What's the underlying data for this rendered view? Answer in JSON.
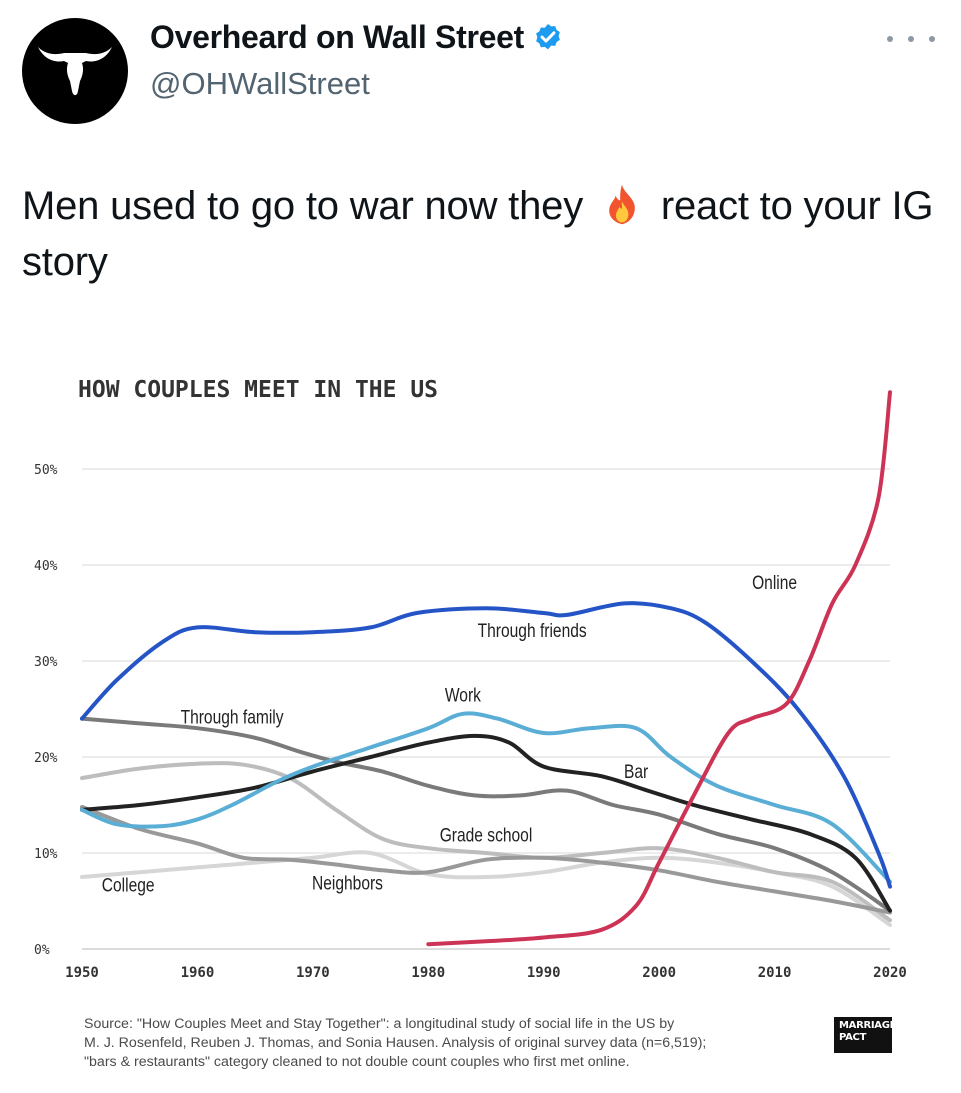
{
  "tweet": {
    "display_name": "Overheard on Wall Street",
    "handle": "@OHWallStreet",
    "verified_icon": "verified-badge-icon",
    "more_icon": "more-options-icon",
    "text_before": "Men used to go to war now they",
    "emoji": "fire-icon",
    "text_after": "react to your IG story"
  },
  "chart_data": {
    "type": "line",
    "title": "HOW COUPLES MEET IN THE US",
    "xlabel": "",
    "ylabel": "",
    "xlim": [
      1950,
      2020
    ],
    "ylim": [
      0,
      50
    ],
    "x_ticks": [
      "1950",
      "1960",
      "1970",
      "1980",
      "1990",
      "2000",
      "2010",
      "2020"
    ],
    "y_ticks": [
      "50%",
      "40%",
      "30%",
      "20%",
      "10%",
      "0%"
    ],
    "grid": true,
    "legend": "inline labels",
    "series": [
      {
        "name": "Through friends",
        "color": "#2554c7",
        "label_at": [
          1989,
          32.5
        ],
        "points": [
          [
            1950,
            24
          ],
          [
            1953,
            28
          ],
          [
            1957,
            32
          ],
          [
            1960,
            33.5
          ],
          [
            1965,
            33
          ],
          [
            1970,
            33
          ],
          [
            1975,
            33.5
          ],
          [
            1979,
            35
          ],
          [
            1985,
            35.5
          ],
          [
            1990,
            35
          ],
          [
            1992,
            34.8
          ],
          [
            1997,
            36
          ],
          [
            2001,
            35.5
          ],
          [
            2004,
            34
          ],
          [
            2008,
            30
          ],
          [
            2012,
            25
          ],
          [
            2016,
            18
          ],
          [
            2019,
            10
          ],
          [
            2020,
            6.5
          ]
        ]
      },
      {
        "name": "Work",
        "color": "#5aaed6",
        "label_at": [
          1983,
          25.8
        ],
        "points": [
          [
            1950,
            14.5
          ],
          [
            1953,
            13
          ],
          [
            1957,
            12.8
          ],
          [
            1960,
            13.5
          ],
          [
            1963,
            15
          ],
          [
            1967,
            17.5
          ],
          [
            1970,
            19
          ],
          [
            1975,
            21
          ],
          [
            1980,
            23
          ],
          [
            1983,
            24.5
          ],
          [
            1986,
            24
          ],
          [
            1990,
            22.5
          ],
          [
            1994,
            23
          ],
          [
            1998,
            23
          ],
          [
            2001,
            20
          ],
          [
            2005,
            17
          ],
          [
            2010,
            15
          ],
          [
            2015,
            13
          ],
          [
            2020,
            7
          ]
        ]
      },
      {
        "name": "Bar",
        "color": "#222222",
        "label_at": [
          1998,
          17.8
        ],
        "points": [
          [
            1950,
            14.5
          ],
          [
            1955,
            15
          ],
          [
            1960,
            15.8
          ],
          [
            1965,
            16.8
          ],
          [
            1970,
            18.5
          ],
          [
            1975,
            20
          ],
          [
            1980,
            21.5
          ],
          [
            1984,
            22.2
          ],
          [
            1987,
            21.5
          ],
          [
            1990,
            19
          ],
          [
            1995,
            18
          ],
          [
            1999,
            16.5
          ],
          [
            2003,
            15
          ],
          [
            2008,
            13.5
          ],
          [
            2013,
            12
          ],
          [
            2017,
            9.5
          ],
          [
            2020,
            4
          ]
        ]
      },
      {
        "name": "Through family",
        "color": "#7a7a7a",
        "label_at": [
          1963,
          23.5
        ],
        "points": [
          [
            1950,
            24
          ],
          [
            1955,
            23.5
          ],
          [
            1960,
            23
          ],
          [
            1965,
            22
          ],
          [
            1969,
            20.5
          ],
          [
            1972,
            19.5
          ],
          [
            1976,
            18.5
          ],
          [
            1980,
            17
          ],
          [
            1984,
            16
          ],
          [
            1988,
            16
          ],
          [
            1992,
            16.5
          ],
          [
            1996,
            15
          ],
          [
            2000,
            14
          ],
          [
            2005,
            12
          ],
          [
            2010,
            10.5
          ],
          [
            2015,
            8
          ],
          [
            2020,
            4
          ]
        ]
      },
      {
        "name": "Grade school",
        "color": "#bdbdbd",
        "label_at": [
          1985,
          11.2
        ],
        "points": [
          [
            1950,
            17.8
          ],
          [
            1955,
            18.8
          ],
          [
            1960,
            19.3
          ],
          [
            1964,
            19.2
          ],
          [
            1968,
            17.8
          ],
          [
            1972,
            14.5
          ],
          [
            1976,
            11.5
          ],
          [
            1980,
            10.5
          ],
          [
            1985,
            10
          ],
          [
            1990,
            9.5
          ],
          [
            1995,
            10
          ],
          [
            2000,
            10.5
          ],
          [
            2005,
            9.5
          ],
          [
            2010,
            8
          ],
          [
            2015,
            7
          ],
          [
            2020,
            3
          ]
        ]
      },
      {
        "name": "Neighbors",
        "color": "#999999",
        "label_at": [
          1973,
          6.2
        ],
        "points": [
          [
            1950,
            14.8
          ],
          [
            1955,
            12.5
          ],
          [
            1960,
            11
          ],
          [
            1964,
            9.5
          ],
          [
            1968,
            9.3
          ],
          [
            1972,
            8.8
          ],
          [
            1976,
            8.2
          ],
          [
            1980,
            8
          ],
          [
            1985,
            9.3
          ],
          [
            1990,
            9.5
          ],
          [
            1995,
            9
          ],
          [
            2000,
            8.2
          ],
          [
            2005,
            7
          ],
          [
            2010,
            6
          ],
          [
            2015,
            5
          ],
          [
            2020,
            3.8
          ]
        ]
      },
      {
        "name": "College",
        "color": "#d6d6d6",
        "label_at": [
          1954,
          6.0
        ],
        "points": [
          [
            1950,
            7.5
          ],
          [
            1955,
            8
          ],
          [
            1960,
            8.5
          ],
          [
            1965,
            9
          ],
          [
            1970,
            9.5
          ],
          [
            1975,
            10
          ],
          [
            1980,
            7.8
          ],
          [
            1985,
            7.5
          ],
          [
            1990,
            8
          ],
          [
            1995,
            9
          ],
          [
            2000,
            9.5
          ],
          [
            2005,
            9
          ],
          [
            2010,
            8
          ],
          [
            2015,
            6.5
          ],
          [
            2020,
            2.5
          ]
        ]
      },
      {
        "name": "Online",
        "color": "#cc3355",
        "label_at": [
          2010,
          37.5
        ],
        "points": [
          [
            1980,
            0.5
          ],
          [
            1985,
            0.8
          ],
          [
            1990,
            1.2
          ],
          [
            1995,
            2
          ],
          [
            1998,
            4.5
          ],
          [
            2000,
            9
          ],
          [
            2003,
            16
          ],
          [
            2006,
            22.5
          ],
          [
            2008,
            24
          ],
          [
            2011,
            25.5
          ],
          [
            2013,
            30
          ],
          [
            2015,
            36
          ],
          [
            2017,
            40
          ],
          [
            2019,
            47
          ],
          [
            2020,
            58
          ]
        ]
      }
    ]
  },
  "source": {
    "lines": [
      "Source: \"How Couples Meet and Stay Together\": a longitudinal study of social life in the US by",
      "M. J. Rosenfeld, Reuben J. Thomas, and Sonia Hausen. Analysis of original survey data (n=6,519);",
      "\"bars & restaurants\" category cleaned to not double count couples who first met online."
    ],
    "logo_line1": "MARRIAGE",
    "logo_line2": "PACT"
  }
}
